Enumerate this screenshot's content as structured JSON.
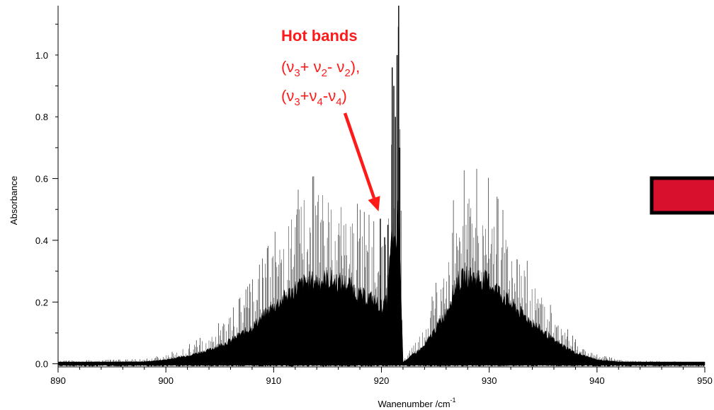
{
  "chart_data": {
    "type": "line",
    "title": "",
    "xlabel": "Wanenumber /cm",
    "xlabel_superscript": "-1",
    "ylabel": "Absorbance",
    "xlim": [
      890,
      950
    ],
    "ylim": [
      -0.01,
      1.16
    ],
    "x_ticks": [
      890,
      900,
      910,
      920,
      930,
      940,
      950
    ],
    "x_tick_labels": [
      "890",
      "900",
      "910",
      "920",
      "930",
      "940",
      "950"
    ],
    "y_ticks": [
      0.0,
      0.2,
      0.4,
      0.6,
      0.8,
      1.0
    ],
    "y_tick_labels": [
      "0.0",
      "0.2",
      "0.4",
      "0.6",
      "0.8",
      "1.0"
    ],
    "grid": false,
    "line_color": "#000000",
    "series": [
      {
        "values_description_free": true,
        "x": [
          890,
          898,
          900,
          902,
          904,
          906,
          908,
          910,
          912,
          913,
          914,
          915,
          916,
          917,
          918,
          919,
          920,
          920.5,
          921,
          921.3,
          921.6,
          921.8,
          922,
          922.3,
          924,
          926,
          927,
          928,
          929,
          930,
          931,
          932,
          934,
          936,
          938,
          940,
          942,
          944,
          950
        ],
        "y": [
          0.01,
          0.015,
          0.03,
          0.06,
          0.1,
          0.17,
          0.27,
          0.42,
          0.55,
          0.6,
          0.61,
          0.62,
          0.6,
          0.58,
          0.5,
          0.48,
          0.42,
          0.45,
          0.96,
          0.8,
          1.15,
          0.55,
          0.01,
          0.03,
          0.13,
          0.38,
          0.6,
          0.64,
          0.63,
          0.6,
          0.52,
          0.44,
          0.3,
          0.17,
          0.08,
          0.03,
          0.015,
          0.01,
          0.005
        ]
      }
    ],
    "annotation": {
      "line1": "Hot bands",
      "line2_parts": [
        "(ν",
        "3",
        "+ ν",
        "2",
        "- ν",
        "2",
        "),"
      ],
      "line3_parts": [
        "(ν",
        "3",
        "+ν",
        "4",
        "-ν",
        "4",
        ")"
      ],
      "arrow_target": [
        920,
        0.48
      ],
      "color": "#ff1a1a"
    },
    "legend_swatch_color": "#d8102e"
  }
}
